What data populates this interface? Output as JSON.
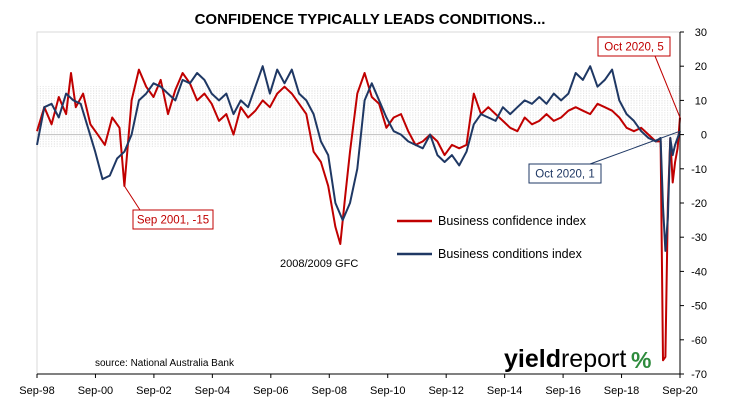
{
  "chart_data": {
    "type": "line",
    "title": "CONFIDENCE TYPICALLY LEADS CONDITIONS...",
    "x_ticks": [
      "Sep-98",
      "Sep-00",
      "Sep-02",
      "Sep-04",
      "Sep-06",
      "Sep-08",
      "Sep-10",
      "Sep-12",
      "Sep-14",
      "Sep-16",
      "Sep-18",
      "Sep-20"
    ],
    "y_ticks": [
      30,
      20,
      10,
      0,
      -10,
      -20,
      -30,
      -40,
      -50,
      -60,
      -70
    ],
    "ylim": [
      -70,
      30
    ],
    "xlim": [
      "1998-09",
      "2020-10"
    ],
    "y_axis_side": "right",
    "long_run_band": [
      -3.5,
      14
    ],
    "series": [
      {
        "name": "Business confidence index",
        "color": "#c00000",
        "points": [
          [
            "1998-09",
            1
          ],
          [
            "1998-12",
            8
          ],
          [
            "1999-03",
            3
          ],
          [
            "1999-06",
            11
          ],
          [
            "1999-09",
            6
          ],
          [
            "1999-11",
            18
          ],
          [
            "2000-01",
            8
          ],
          [
            "2000-04",
            12
          ],
          [
            "2000-07",
            3
          ],
          [
            "2000-10",
            0
          ],
          [
            "2001-01",
            -3
          ],
          [
            "2001-04",
            5
          ],
          [
            "2001-07",
            2
          ],
          [
            "2001-09",
            -15
          ],
          [
            "2001-12",
            10
          ],
          [
            "2002-03",
            19
          ],
          [
            "2002-06",
            14
          ],
          [
            "2002-09",
            11
          ],
          [
            "2002-12",
            16
          ],
          [
            "2003-03",
            6
          ],
          [
            "2003-06",
            13
          ],
          [
            "2003-09",
            18
          ],
          [
            "2003-12",
            15
          ],
          [
            "2004-03",
            10
          ],
          [
            "2004-06",
            12
          ],
          [
            "2004-09",
            9
          ],
          [
            "2004-12",
            4
          ],
          [
            "2005-03",
            6
          ],
          [
            "2005-06",
            0
          ],
          [
            "2005-09",
            8
          ],
          [
            "2005-12",
            5
          ],
          [
            "2006-03",
            7
          ],
          [
            "2006-06",
            10
          ],
          [
            "2006-09",
            8
          ],
          [
            "2006-12",
            12
          ],
          [
            "2007-03",
            14
          ],
          [
            "2007-06",
            12
          ],
          [
            "2007-09",
            9
          ],
          [
            "2007-12",
            6
          ],
          [
            "2008-03",
            -5
          ],
          [
            "2008-06",
            -8
          ],
          [
            "2008-09",
            -15
          ],
          [
            "2008-12",
            -27
          ],
          [
            "2009-02",
            -32
          ],
          [
            "2009-04",
            -18
          ],
          [
            "2009-06",
            -5
          ],
          [
            "2009-09",
            12
          ],
          [
            "2009-12",
            18
          ],
          [
            "2010-03",
            11
          ],
          [
            "2010-06",
            9
          ],
          [
            "2010-09",
            2
          ],
          [
            "2010-12",
            5
          ],
          [
            "2011-03",
            6
          ],
          [
            "2011-06",
            1
          ],
          [
            "2011-09",
            -3
          ],
          [
            "2011-12",
            -2
          ],
          [
            "2012-03",
            0
          ],
          [
            "2012-06",
            -2
          ],
          [
            "2012-09",
            -6
          ],
          [
            "2012-12",
            -3
          ],
          [
            "2013-03",
            -4
          ],
          [
            "2013-06",
            -3
          ],
          [
            "2013-09",
            12
          ],
          [
            "2013-12",
            6
          ],
          [
            "2014-03",
            8
          ],
          [
            "2014-06",
            6
          ],
          [
            "2014-09",
            4
          ],
          [
            "2014-12",
            2
          ],
          [
            "2015-03",
            1
          ],
          [
            "2015-06",
            5
          ],
          [
            "2015-09",
            3
          ],
          [
            "2015-12",
            4
          ],
          [
            "2016-03",
            6
          ],
          [
            "2016-06",
            4
          ],
          [
            "2016-09",
            5
          ],
          [
            "2016-12",
            7
          ],
          [
            "2017-03",
            8
          ],
          [
            "2017-06",
            7
          ],
          [
            "2017-09",
            6
          ],
          [
            "2017-12",
            9
          ],
          [
            "2018-03",
            8
          ],
          [
            "2018-06",
            7
          ],
          [
            "2018-09",
            5
          ],
          [
            "2018-12",
            2
          ],
          [
            "2019-03",
            1
          ],
          [
            "2019-06",
            2
          ],
          [
            "2019-09",
            0
          ],
          [
            "2019-12",
            -2
          ],
          [
            "2020-02",
            -2
          ],
          [
            "2020-03",
            -66
          ],
          [
            "2020-04",
            -65
          ],
          [
            "2020-05",
            -20
          ],
          [
            "2020-06",
            -1
          ],
          [
            "2020-07",
            -14
          ],
          [
            "2020-08",
            -8
          ],
          [
            "2020-09",
            -4
          ],
          [
            "2020-10",
            5
          ]
        ]
      },
      {
        "name": "Business conditions index",
        "color": "#1f3864",
        "points": [
          [
            "1998-09",
            -3
          ],
          [
            "1998-12",
            8
          ],
          [
            "1999-03",
            9
          ],
          [
            "1999-06",
            5
          ],
          [
            "1999-09",
            12
          ],
          [
            "1999-12",
            10
          ],
          [
            "2000-03",
            9
          ],
          [
            "2000-06",
            2
          ],
          [
            "2000-09",
            -5
          ],
          [
            "2000-12",
            -13
          ],
          [
            "2001-03",
            -12
          ],
          [
            "2001-06",
            -7
          ],
          [
            "2001-09",
            -5
          ],
          [
            "2001-12",
            0
          ],
          [
            "2002-03",
            10
          ],
          [
            "2002-06",
            12
          ],
          [
            "2002-09",
            15
          ],
          [
            "2002-12",
            14
          ],
          [
            "2003-03",
            12
          ],
          [
            "2003-06",
            10
          ],
          [
            "2003-09",
            16
          ],
          [
            "2003-12",
            15
          ],
          [
            "2004-03",
            18
          ],
          [
            "2004-06",
            16
          ],
          [
            "2004-09",
            12
          ],
          [
            "2004-12",
            10
          ],
          [
            "2005-03",
            12
          ],
          [
            "2005-06",
            6
          ],
          [
            "2005-09",
            10
          ],
          [
            "2005-12",
            8
          ],
          [
            "2006-03",
            14
          ],
          [
            "2006-06",
            20
          ],
          [
            "2006-09",
            12
          ],
          [
            "2006-12",
            19
          ],
          [
            "2007-03",
            15
          ],
          [
            "2007-06",
            19
          ],
          [
            "2007-09",
            12
          ],
          [
            "2007-12",
            10
          ],
          [
            "2008-03",
            6
          ],
          [
            "2008-06",
            -2
          ],
          [
            "2008-09",
            -6
          ],
          [
            "2008-12",
            -20
          ],
          [
            "2009-03",
            -25
          ],
          [
            "2009-06",
            -20
          ],
          [
            "2009-09",
            -10
          ],
          [
            "2009-12",
            10
          ],
          [
            "2010-03",
            15
          ],
          [
            "2010-06",
            10
          ],
          [
            "2010-09",
            5
          ],
          [
            "2010-12",
            1
          ],
          [
            "2011-03",
            0
          ],
          [
            "2011-06",
            -2
          ],
          [
            "2011-09",
            -3
          ],
          [
            "2011-12",
            -4
          ],
          [
            "2012-03",
            0
          ],
          [
            "2012-06",
            -6
          ],
          [
            "2012-09",
            -8
          ],
          [
            "2012-12",
            -6
          ],
          [
            "2013-03",
            -9
          ],
          [
            "2013-06",
            -5
          ],
          [
            "2013-09",
            3
          ],
          [
            "2013-12",
            6
          ],
          [
            "2014-03",
            5
          ],
          [
            "2014-06",
            4
          ],
          [
            "2014-09",
            8
          ],
          [
            "2014-12",
            6
          ],
          [
            "2015-03",
            8
          ],
          [
            "2015-06",
            10
          ],
          [
            "2015-09",
            9
          ],
          [
            "2015-12",
            11
          ],
          [
            "2016-03",
            9
          ],
          [
            "2016-06",
            12
          ],
          [
            "2016-09",
            10
          ],
          [
            "2016-12",
            12
          ],
          [
            "2017-03",
            18
          ],
          [
            "2017-06",
            16
          ],
          [
            "2017-09",
            20
          ],
          [
            "2017-12",
            14
          ],
          [
            "2018-03",
            16
          ],
          [
            "2018-06",
            19
          ],
          [
            "2018-09",
            10
          ],
          [
            "2018-12",
            6
          ],
          [
            "2019-03",
            4
          ],
          [
            "2019-06",
            1
          ],
          [
            "2019-09",
            -1
          ],
          [
            "2019-12",
            -2
          ],
          [
            "2020-02",
            -1
          ],
          [
            "2020-03",
            -21
          ],
          [
            "2020-04",
            -34
          ],
          [
            "2020-05",
            -24
          ],
          [
            "2020-06",
            -1
          ],
          [
            "2020-07",
            -6
          ],
          [
            "2020-08",
            -3
          ],
          [
            "2020-09",
            -1
          ],
          [
            "2020-10",
            1
          ]
        ]
      }
    ],
    "legend": [
      "Business confidence index",
      "Business conditions index"
    ],
    "annotations": {
      "gfc": "2008/2009 GFC",
      "sep2001": "Sep 2001, -15",
      "oct2020_conf": "Oct 2020, 5",
      "oct2020_cond": "Oct 2020, 1"
    },
    "annotation_points": {
      "sep2001": {
        "x": "2001-09",
        "y": -15
      },
      "oct2020_conf": {
        "x": "2020-10",
        "y": 5
      },
      "oct2020_cond": {
        "x": "2020-10",
        "y": 1
      }
    },
    "source": "source: National Australia Bank",
    "logo": {
      "text1": "yield",
      "text2": "report",
      "pct": "%"
    },
    "grid": "off"
  }
}
